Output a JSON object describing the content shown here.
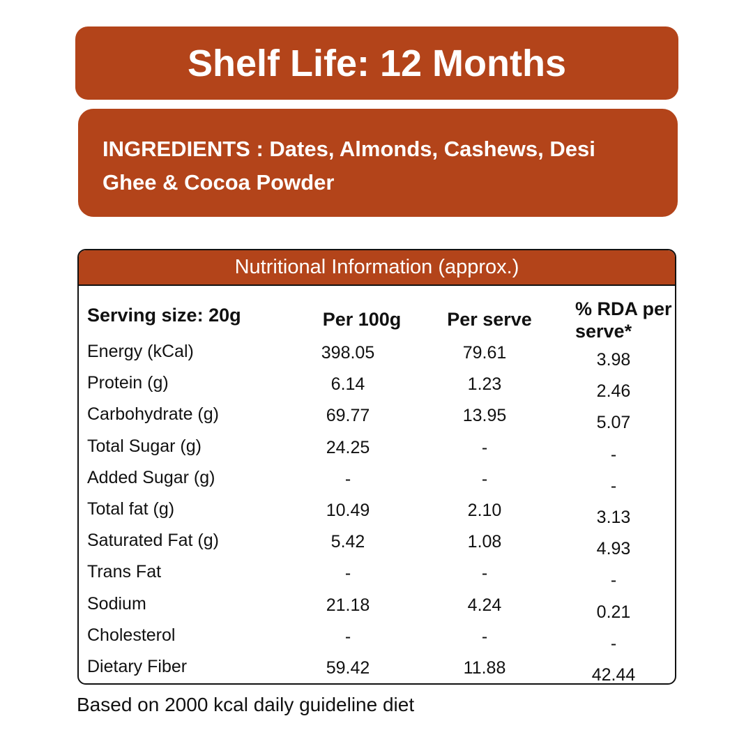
{
  "shelf_life": "Shelf Life: 12 Months",
  "ingredients": "INGREDIENTS : Dates, Almonds, Cashews, Desi Ghee & Cocoa Powder",
  "table": {
    "title": "Nutritional Information (approx.)",
    "header": [
      "Serving size: 20g",
      "Per 100g",
      "Per serve",
      "% RDA per serve*"
    ],
    "rows": [
      [
        "Energy (kCal)",
        "398.05",
        "79.61",
        "3.98"
      ],
      [
        "Protein (g)",
        "6.14",
        "1.23",
        "2.46"
      ],
      [
        "Carbohydrate (g)",
        "69.77",
        "13.95",
        "5.07"
      ],
      [
        "Total Sugar (g)",
        "24.25",
        "-",
        "-"
      ],
      [
        "Added Sugar (g)",
        "-",
        "-",
        "-"
      ],
      [
        "Total fat (g)",
        "10.49",
        "2.10",
        "3.13"
      ],
      [
        "Saturated Fat (g)",
        "5.42",
        "1.08",
        "4.93"
      ],
      [
        "Trans Fat",
        "-",
        "-",
        "-"
      ],
      [
        "Sodium",
        "21.18",
        "4.24",
        "0.21"
      ],
      [
        "Cholesterol",
        "-",
        "-",
        "-"
      ],
      [
        "Dietary Fiber",
        "59.42",
        "11.88",
        "42.44"
      ]
    ]
  },
  "footnote": "Based on 2000 kcal daily guideline diet"
}
